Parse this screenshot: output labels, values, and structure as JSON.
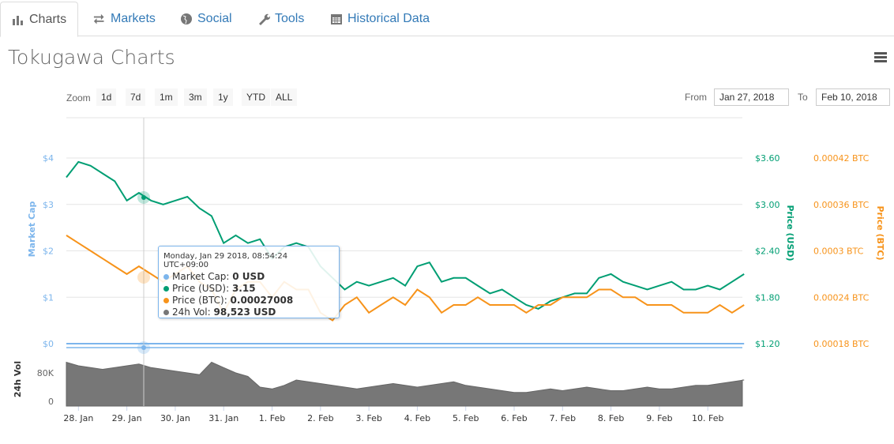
{
  "tabs": [
    {
      "label": "Charts",
      "icon": "bar-chart-icon"
    },
    {
      "label": "Markets",
      "icon": "exchange-icon"
    },
    {
      "label": "Social",
      "icon": "globe-icon"
    },
    {
      "label": "Tools",
      "icon": "wrench-icon"
    },
    {
      "label": "Historical Data",
      "icon": "calendar-icon"
    }
  ],
  "title": "Tokugawa Charts",
  "zoom": {
    "label": "Zoom",
    "buttons": [
      "1d",
      "7d",
      "1m",
      "3m",
      "1y",
      "YTD",
      "ALL"
    ]
  },
  "range": {
    "from_label": "From",
    "from": "Jan 27, 2018",
    "to_label": "To",
    "to": "Feb 10, 2018"
  },
  "tooltip": {
    "header": "Monday, Jan 29 2018, 08:54:24 UTC+09:00",
    "rows": [
      {
        "label": "Market Cap: ",
        "value": "0 USD",
        "color": "#7cb5ec"
      },
      {
        "label": "Price (USD): ",
        "value": "3.15",
        "color": "#009e73"
      },
      {
        "label": "Price (BTC): ",
        "value": "0.00027008",
        "color": "#f7931a"
      },
      {
        "label": "24h Vol: ",
        "value": "98,523 USD",
        "color": "#777777"
      }
    ]
  },
  "chart_data": {
    "type": "line",
    "x_start": "Jan 27 2018 18:00",
    "x_step": "6 hours",
    "x_ticks": [
      "28. Jan",
      "29. Jan",
      "30. Jan",
      "31. Jan",
      "1. Feb",
      "2. Feb",
      "3. Feb",
      "4. Feb",
      "5. Feb",
      "6. Feb",
      "7. Feb",
      "8. Feb",
      "9. Feb",
      "10. Feb"
    ],
    "axes": {
      "market_cap": {
        "label": "Market Cap",
        "ticks": [
          "$0",
          "$1",
          "$2",
          "$3",
          "$4"
        ],
        "range": [
          0,
          4
        ],
        "color": "#7cb5ec"
      },
      "usd": {
        "label": "Price (USD)",
        "ticks": [
          "$1.20",
          "$1.80",
          "$2.40",
          "$3.00",
          "$3.60"
        ],
        "range": [
          1.2,
          3.6
        ],
        "color": "#009e73"
      },
      "btc": {
        "label": "Price (BTC)",
        "ticks": [
          "0.00018 BTC",
          "0.00024 BTC",
          "0.0003 BTC",
          "0.00036 BTC",
          "0.00042 BTC"
        ],
        "range": [
          0.00018,
          0.00042
        ],
        "color": "#f7931a"
      },
      "volume": {
        "label": "24h Vol",
        "ticks": [
          "0",
          "80K"
        ],
        "range": [
          0,
          130000
        ],
        "color": "#777777"
      }
    },
    "series": [
      {
        "name": "Market Cap",
        "axis": "market_cap",
        "values": [
          0,
          0,
          0,
          0,
          0,
          0,
          0,
          0,
          0,
          0,
          0,
          0,
          0,
          0,
          0,
          0,
          0,
          0,
          0,
          0,
          0,
          0,
          0,
          0,
          0,
          0,
          0,
          0,
          0,
          0,
          0,
          0,
          0,
          0,
          0,
          0,
          0,
          0,
          0,
          0,
          0,
          0,
          0,
          0,
          0,
          0,
          0,
          0,
          0,
          0,
          0,
          0,
          0,
          0,
          0,
          0,
          0
        ]
      },
      {
        "name": "Price (USD)",
        "axis": "usd",
        "values": [
          3.35,
          3.55,
          3.5,
          3.4,
          3.3,
          3.05,
          3.15,
          3.05,
          3.0,
          3.05,
          3.1,
          2.95,
          2.85,
          2.5,
          2.6,
          2.5,
          2.55,
          2.3,
          2.45,
          2.5,
          2.45,
          2.2,
          2.05,
          1.9,
          2.0,
          1.95,
          2.0,
          2.05,
          1.95,
          2.2,
          2.25,
          2.0,
          2.05,
          2.05,
          1.95,
          1.85,
          1.9,
          1.8,
          1.7,
          1.65,
          1.75,
          1.8,
          1.85,
          1.85,
          2.05,
          2.1,
          2.0,
          1.95,
          1.9,
          1.95,
          2.0,
          1.9,
          1.9,
          1.95,
          1.9,
          2.0,
          2.1
        ]
      },
      {
        "name": "Price (BTC)",
        "axis": "btc",
        "values": [
          0.00032,
          0.00031,
          0.0003,
          0.00029,
          0.00028,
          0.00027,
          0.00028,
          0.00027,
          0.00026,
          0.00027,
          0.00028,
          0.00026,
          0.00025,
          0.00022,
          0.00025,
          0.00026,
          0.00026,
          0.00024,
          0.00026,
          0.00025,
          0.00025,
          0.00022,
          0.00021,
          0.00023,
          0.00024,
          0.00022,
          0.00023,
          0.00024,
          0.00023,
          0.00025,
          0.00024,
          0.00022,
          0.00023,
          0.00023,
          0.00024,
          0.00023,
          0.00023,
          0.00023,
          0.00022,
          0.00023,
          0.00023,
          0.00024,
          0.00024,
          0.00024,
          0.00025,
          0.00025,
          0.00024,
          0.00024,
          0.00023,
          0.00023,
          0.00023,
          0.00022,
          0.00022,
          0.00022,
          0.00023,
          0.00022,
          0.00023
        ]
      },
      {
        "name": "24h Vol",
        "axis": "volume",
        "values": [
          110000,
          100000,
          95000,
          90000,
          95000,
          100000,
          105000,
          95000,
          90000,
          85000,
          80000,
          75000,
          110000,
          95000,
          80000,
          70000,
          40000,
          35000,
          45000,
          60000,
          55000,
          50000,
          45000,
          40000,
          35000,
          40000,
          45000,
          50000,
          45000,
          40000,
          45000,
          50000,
          55000,
          45000,
          40000,
          35000,
          30000,
          25000,
          25000,
          30000,
          35000,
          30000,
          35000,
          40000,
          35000,
          30000,
          30000,
          35000,
          40000,
          35000,
          35000,
          40000,
          45000,
          45000,
          50000,
          55000,
          60000
        ]
      }
    ]
  }
}
